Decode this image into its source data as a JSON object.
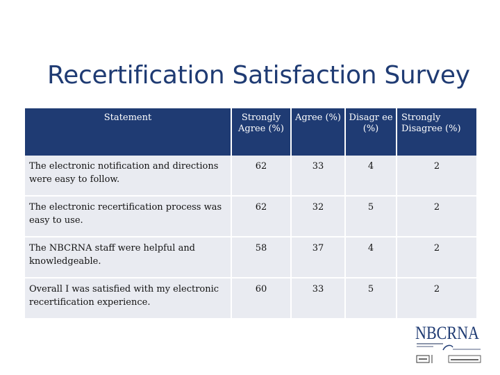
{
  "title": "Recertification Satisfaction Survey",
  "table": {
    "headers": [
      "Statement",
      "Strongly Agree (%)",
      "Agree (%)",
      "Disagr ee (%)",
      "Strongly Disagree (%)"
    ],
    "rows": [
      {
        "statement": "The electronic notification and directions were easy to follow.",
        "strongly_agree": "62",
        "agree": "33",
        "disagree": "4",
        "strongly_disagree": "2"
      },
      {
        "statement": "The electronic recertification process was easy to use.",
        "strongly_agree": "62",
        "agree": "32",
        "disagree": "5",
        "strongly_disagree": "2"
      },
      {
        "statement": "The NBCRNA staff were helpful and knowledgeable.",
        "strongly_agree": "58",
        "agree": "37",
        "disagree": "4",
        "strongly_disagree": "2"
      },
      {
        "statement": "Overall I was satisfied with my electronic recertification experience.",
        "strongly_agree": "60",
        "agree": "33",
        "disagree": "5",
        "strongly_disagree": "2"
      }
    ]
  },
  "logo": {
    "wordmark": "NBCRNA",
    "brand_color": "#1F3B73"
  }
}
